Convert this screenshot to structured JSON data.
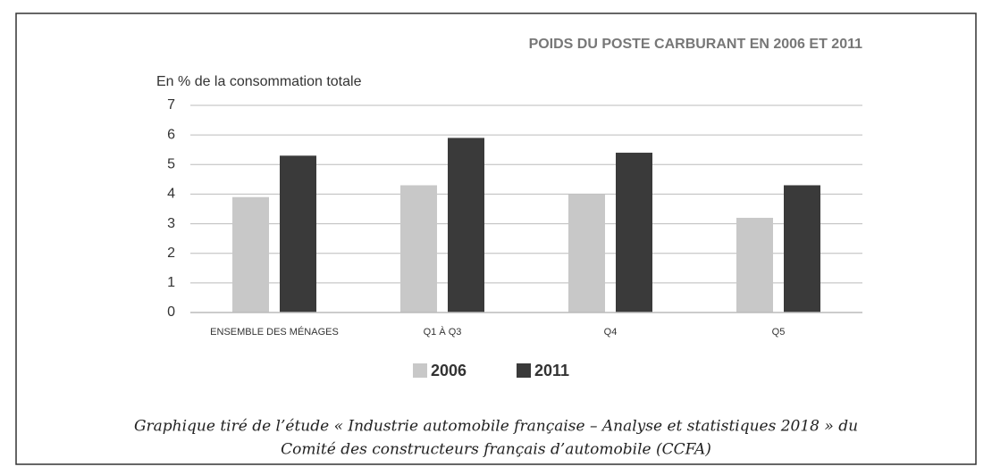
{
  "chart_data": {
    "type": "bar",
    "title": "POIDS DU POSTE CARBURANT EN 2006 ET 2011",
    "y_label": "En % de la consommation totale",
    "categories": [
      "ENSEMBLE DES MÉNAGES",
      "Q1 À Q3",
      "Q4",
      "Q5"
    ],
    "series": [
      {
        "name": "2006",
        "color": "#c8c8c8",
        "values": [
          3.9,
          4.3,
          4.0,
          3.2
        ]
      },
      {
        "name": "2011",
        "color": "#3a3a3a",
        "values": [
          5.3,
          5.9,
          5.4,
          4.3
        ]
      }
    ],
    "ylim": [
      0,
      7
    ],
    "yticks": [
      0,
      1,
      2,
      3,
      4,
      5,
      6,
      7
    ],
    "grid": true,
    "caption": [
      "Graphique tiré de l’étude « Industrie automobile française – Analyse et statistiques 2018 » du",
      "Comité des constructeurs français d’automobile (CCFA)"
    ]
  }
}
